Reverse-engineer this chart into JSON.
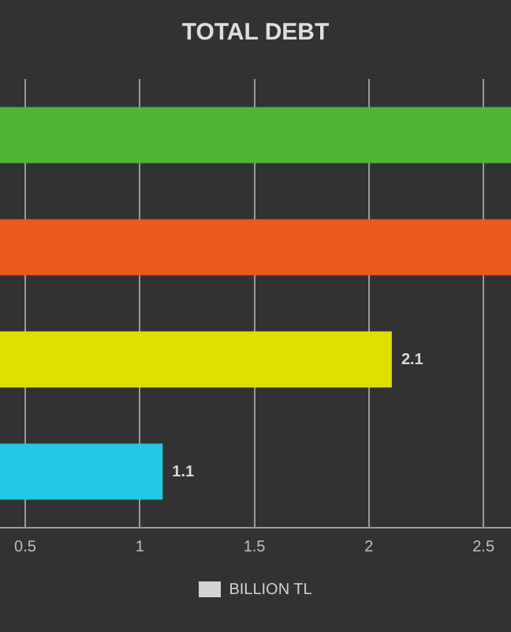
{
  "chart_data": {
    "type": "bar",
    "orientation": "horizontal",
    "title": "TOTAL DEBT",
    "categories": [
      null,
      null,
      null,
      null
    ],
    "series": [
      {
        "name": "BILLION TL",
        "color": "#d3d3d3",
        "colors": [
          "#52b435",
          "#ea5a1c",
          "#dfe000",
          "#22c8e3"
        ],
        "values": [
          2.62,
          2.62,
          2.1,
          1.1
        ],
        "value_labels": [
          null,
          null,
          "2.1",
          "1.1"
        ]
      }
    ],
    "xlim": [
      0.39,
      2.62
    ],
    "xticks": [
      0.5,
      1,
      1.5,
      2,
      2.5
    ],
    "grid": "x",
    "legend": "bottom"
  }
}
